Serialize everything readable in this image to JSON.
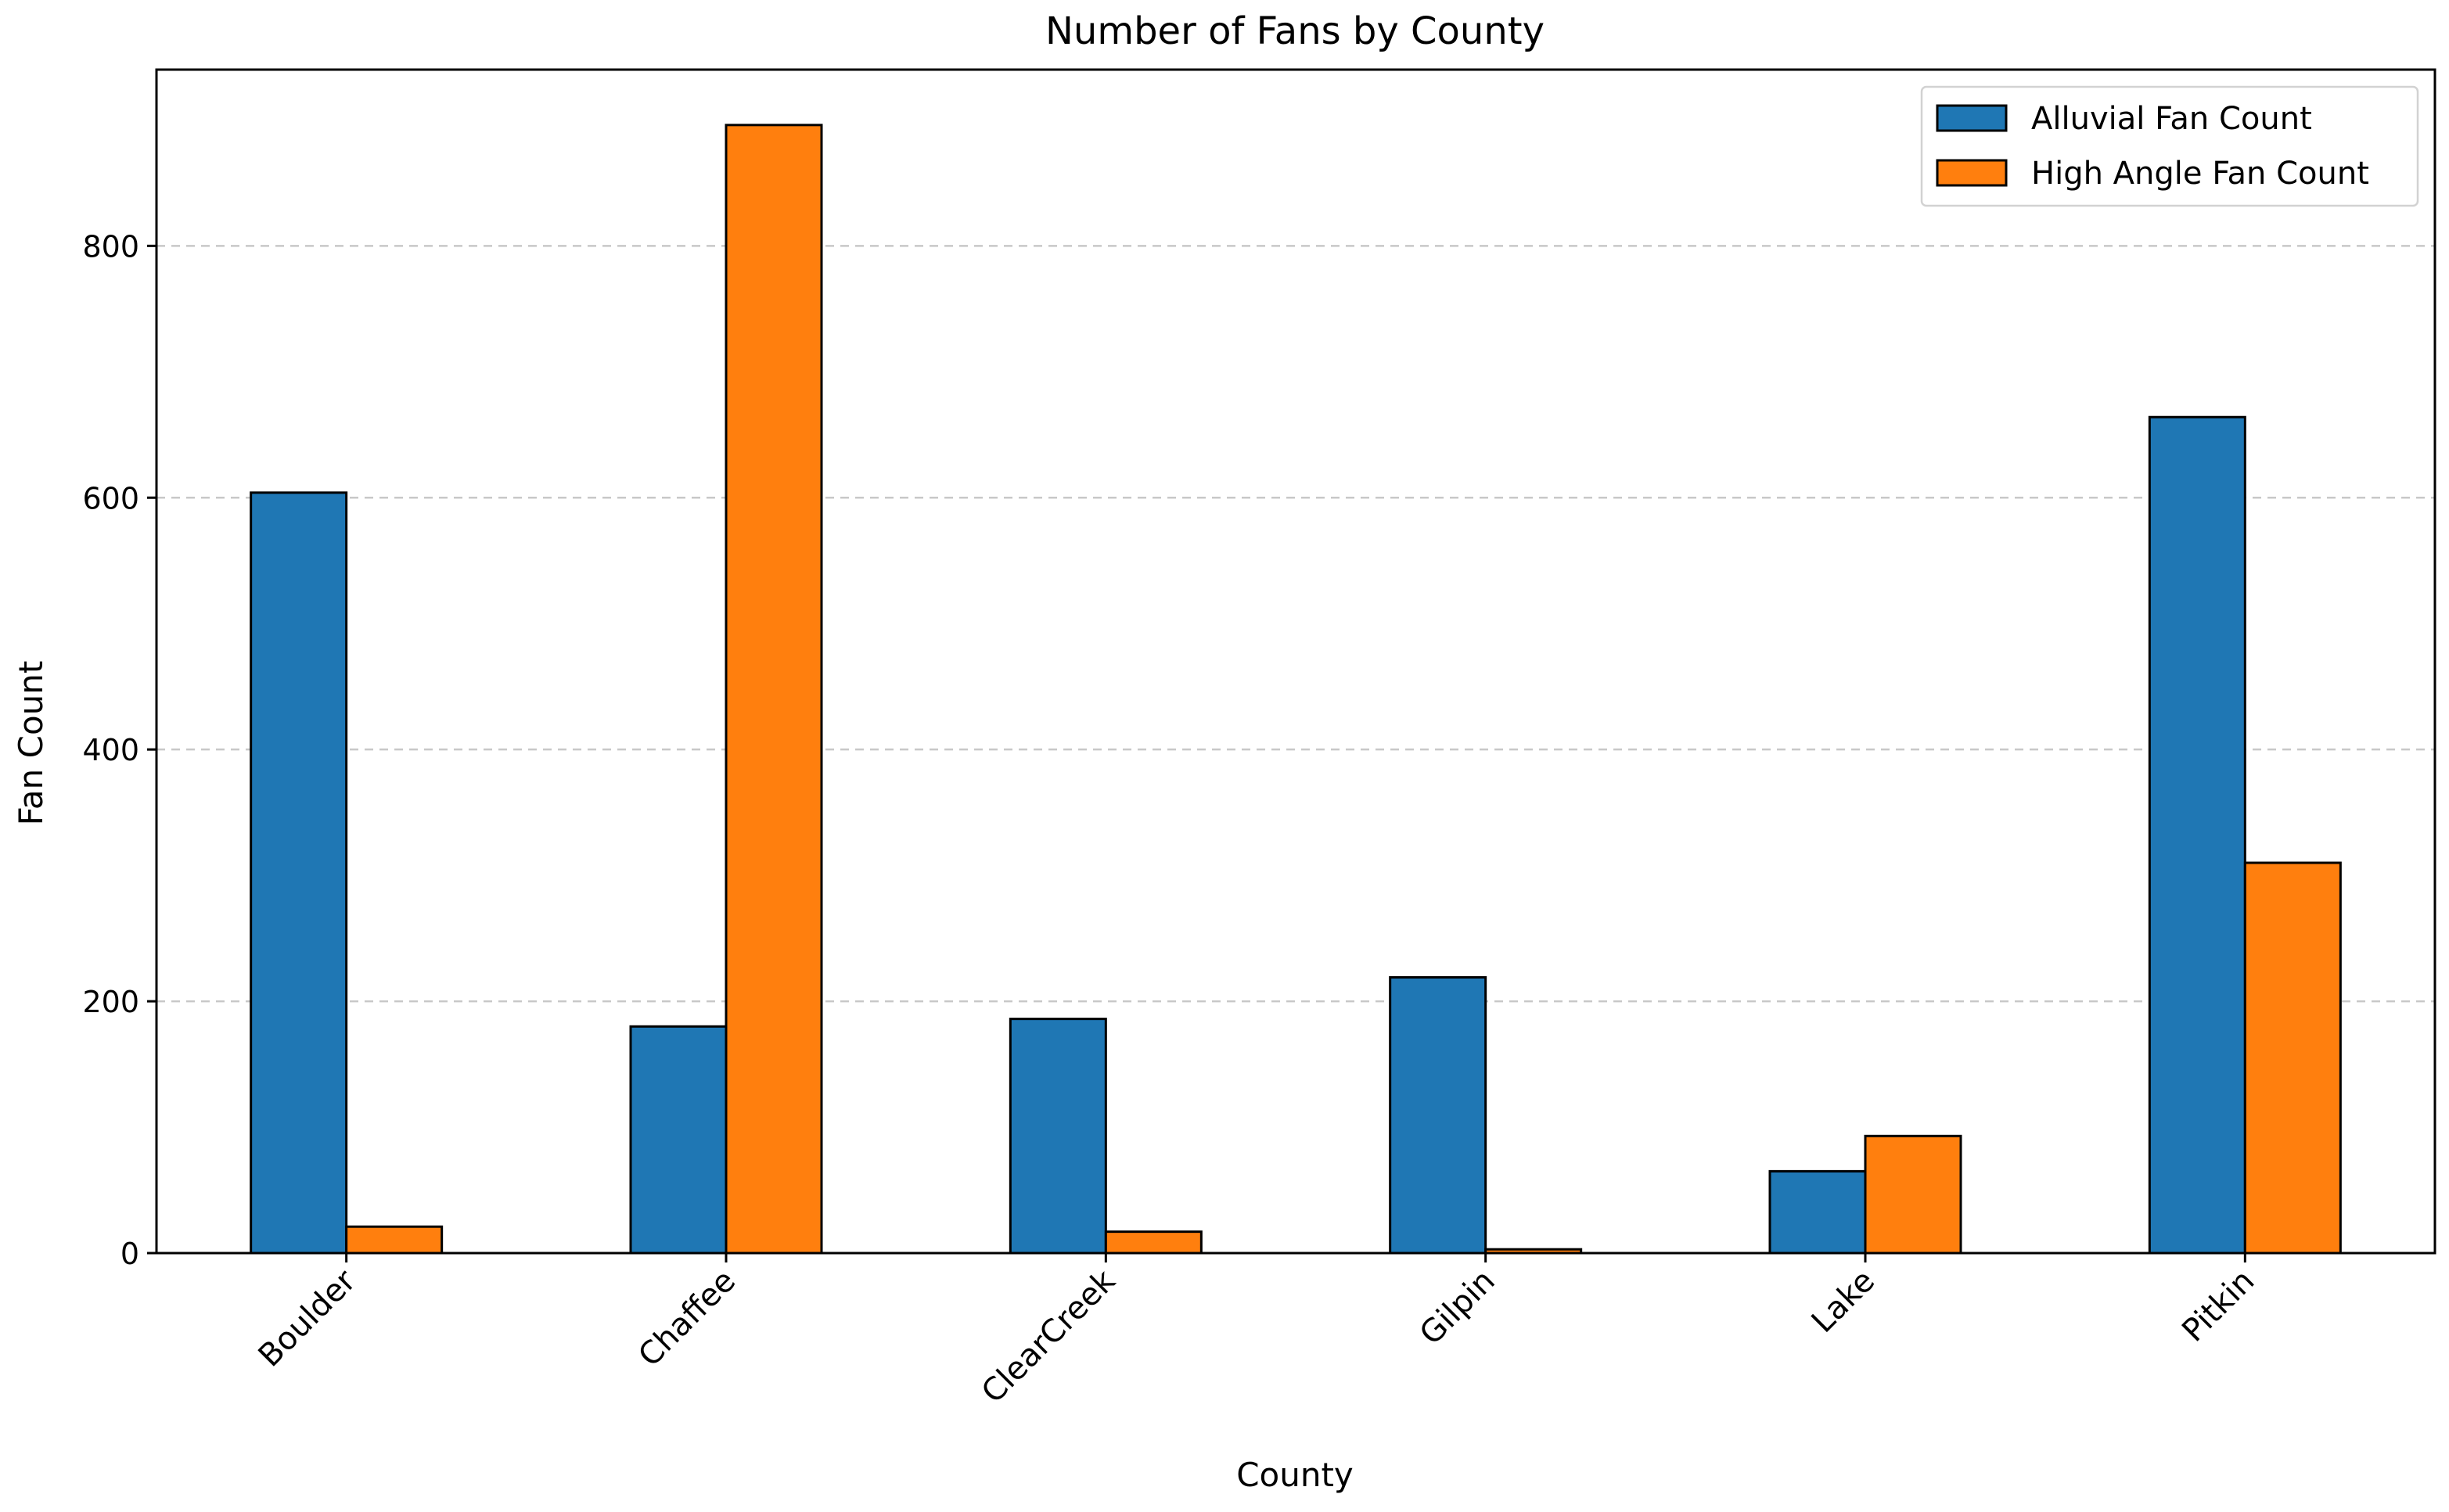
{
  "chart_data": {
    "type": "bar",
    "title": "Number of Fans by County",
    "xlabel": "County",
    "ylabel": "Fan Count",
    "categories": [
      "Boulder",
      "Chaffee",
      "ClearCreek",
      "Gilpin",
      "Lake",
      "Pitkin"
    ],
    "series": [
      {
        "name": "Alluvial Fan Count",
        "color": "#1f77b4",
        "values": [
          604,
          180,
          186,
          219,
          65,
          664
        ]
      },
      {
        "name": "High Angle Fan Count",
        "color": "#ff7f0e",
        "values": [
          21,
          896,
          17,
          3,
          93,
          310
        ]
      }
    ],
    "ylim": [
      0,
      940
    ],
    "yticks": [
      0,
      200,
      400,
      600,
      800
    ],
    "grid": "y-dashed",
    "legend_position": "top-right",
    "xtick_rotation": 45
  }
}
